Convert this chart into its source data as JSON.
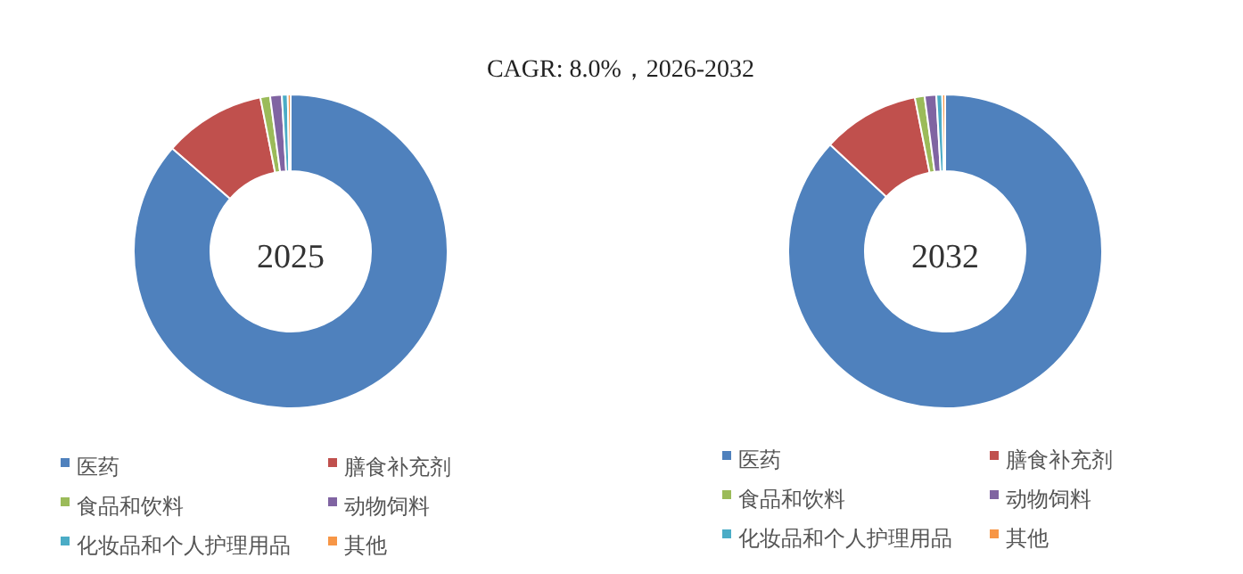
{
  "chart_data": [
    {
      "type": "donut",
      "title": "2025",
      "annotations": [
        "CAGR:  8.0%，2026-2032"
      ],
      "legend": "bottom",
      "categories": [
        "医药",
        "膳食补充剂",
        "食品和饮料",
        "动物饲料",
        "化妆品和个人护理用品",
        "其他"
      ],
      "values": [
        86.4,
        10.5,
        1.0,
        1.2,
        0.6,
        0.3
      ],
      "colors": [
        "#4f81bd",
        "#c0504d",
        "#9bbb59",
        "#8064a2",
        "#4bacc6",
        "#f79646"
      ]
    },
    {
      "type": "donut",
      "title": "2032",
      "legend": "bottom",
      "categories": [
        "医药",
        "膳食补充剂",
        "食品和饮料",
        "动物饲料",
        "化妆品和个人护理用品",
        "其他"
      ],
      "values": [
        86.9,
        10.0,
        1.0,
        1.2,
        0.6,
        0.3
      ],
      "colors": [
        "#4f81bd",
        "#c0504d",
        "#9bbb59",
        "#8064a2",
        "#4bacc6",
        "#f79646"
      ]
    }
  ]
}
